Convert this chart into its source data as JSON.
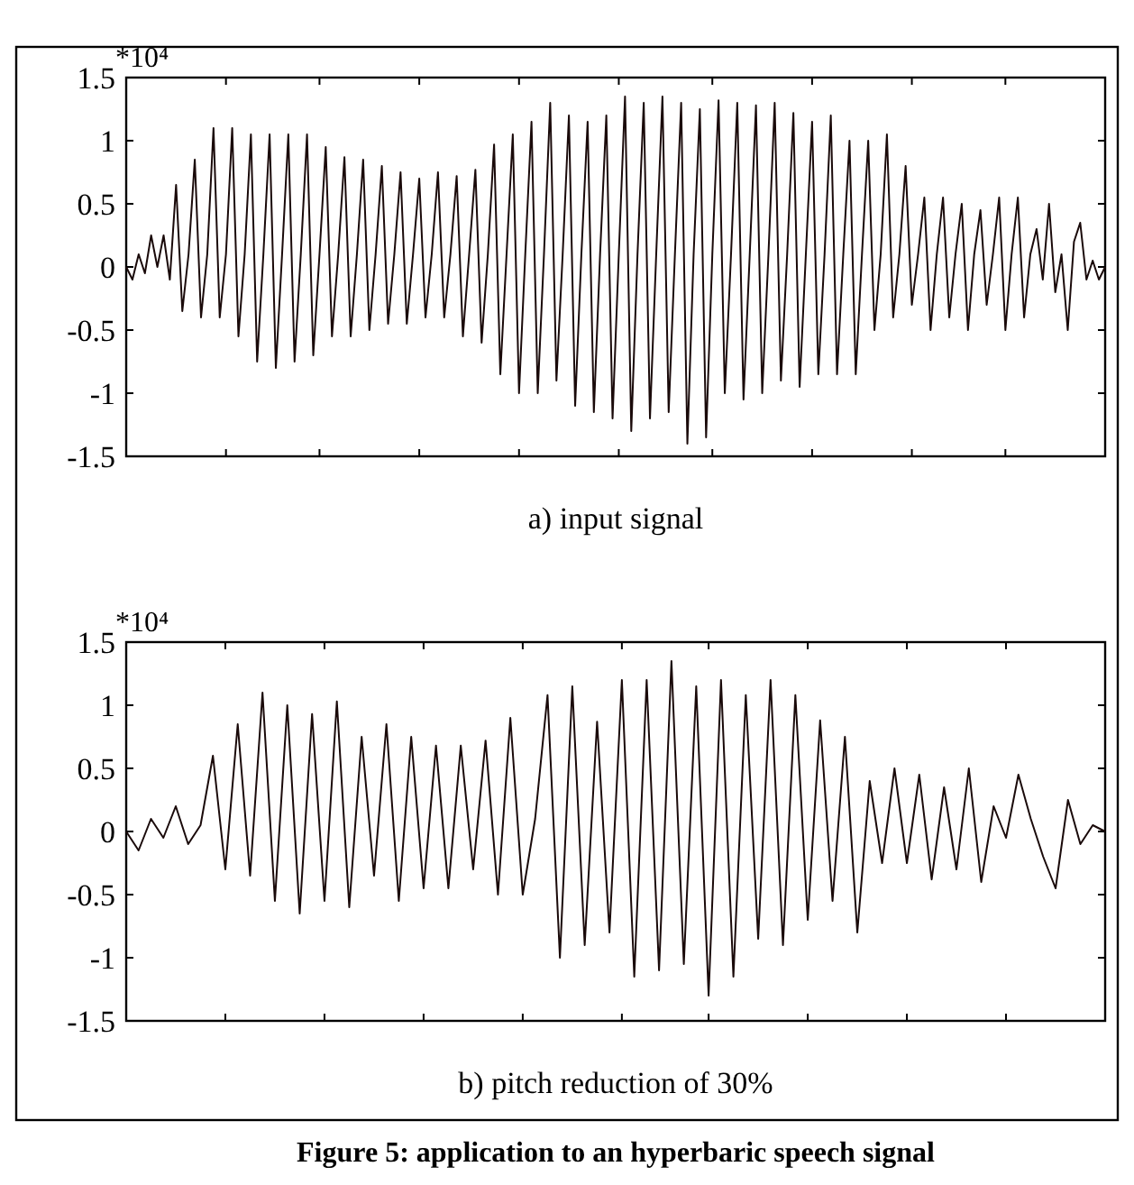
{
  "chart_data": [
    {
      "type": "line",
      "xlabel": "a) input signal",
      "ylabel": "*10⁴",
      "ylim": [
        -1.5,
        1.5
      ],
      "yticks": [
        1.5,
        1,
        0.5,
        0,
        -0.5,
        -1,
        -1.5
      ],
      "grid": false,
      "marker": "none",
      "line_style": "solid",
      "categories": [
        null,
        null,
        null,
        null,
        null,
        null,
        null,
        null,
        null,
        null,
        null,
        null,
        null,
        null,
        null,
        null,
        null,
        null,
        null,
        null,
        null,
        null,
        null,
        null,
        null,
        null,
        null,
        null,
        null,
        null,
        null,
        null,
        null,
        null,
        null,
        null,
        null,
        null,
        null,
        null,
        null,
        null,
        null,
        null,
        null,
        null,
        null,
        null,
        null,
        null,
        null,
        null,
        null,
        null,
        null,
        null,
        null,
        null,
        null,
        null,
        null,
        null,
        null,
        null,
        null,
        null,
        null,
        null,
        null,
        null,
        null,
        null,
        null,
        null,
        null,
        null,
        null,
        null,
        null,
        null,
        null,
        null,
        null,
        null,
        null,
        null,
        null,
        null,
        null,
        null,
        null,
        null,
        null,
        null,
        null,
        null,
        null,
        null,
        null,
        null,
        null,
        null,
        null,
        null,
        null,
        null,
        null,
        null,
        null,
        null,
        null,
        null,
        null,
        null,
        null,
        null,
        null,
        null,
        null,
        null,
        null,
        null,
        null,
        null,
        null,
        null,
        null,
        null,
        null,
        null,
        null,
        null,
        null,
        null,
        null,
        null,
        null,
        null,
        null,
        null,
        null,
        null,
        null,
        null,
        null,
        null,
        null,
        null,
        null,
        null,
        null,
        null,
        null,
        null,
        null,
        null,
        null,
        null
      ],
      "series": [
        {
          "color": "#1a0a0a",
          "values": [
            0,
            -0.1,
            0.1,
            -0.05,
            0.25,
            0,
            0.25,
            -0.1,
            0.65,
            -0.35,
            0.1,
            0.85,
            -0.4,
            0.1,
            1.1,
            -0.4,
            0.1,
            1.1,
            -0.55,
            0.1,
            1.05,
            -0.75,
            0.1,
            1.05,
            -0.8,
            0.1,
            1.05,
            -0.75,
            0.1,
            1.05,
            -0.7,
            0.1,
            0.95,
            -0.55,
            0.1,
            0.87,
            -0.55,
            0.1,
            0.85,
            -0.5,
            0.1,
            0.8,
            -0.45,
            0.1,
            0.75,
            -0.45,
            0.1,
            0.7,
            -0.4,
            0.1,
            0.75,
            -0.4,
            0.1,
            0.72,
            -0.55,
            0.1,
            0.77,
            -0.6,
            0.1,
            0.97,
            -0.85,
            0.1,
            1.05,
            -1,
            0.1,
            1.15,
            -1,
            0.1,
            1.3,
            -0.9,
            0.1,
            1.2,
            -1.1,
            0.1,
            1.15,
            -1.15,
            0.1,
            1.2,
            -1.2,
            0.1,
            1.35,
            -1.3,
            0.1,
            1.3,
            -1.2,
            0.1,
            1.35,
            -1.15,
            0.1,
            1.3,
            -1.4,
            0.1,
            1.25,
            -1.35,
            0.1,
            1.32,
            -1,
            0.1,
            1.3,
            -1.05,
            0.1,
            1.28,
            -1,
            0.1,
            1.3,
            -0.9,
            0.1,
            1.22,
            -0.95,
            0.1,
            1.15,
            -0.85,
            0.1,
            1.2,
            -0.85,
            0.1,
            1,
            -0.85,
            0.1,
            1,
            -0.5,
            0.1,
            1.05,
            -0.4,
            0.1,
            0.8,
            -0.3,
            0.1,
            0.55,
            -0.5,
            0.1,
            0.55,
            -0.4,
            0.1,
            0.5,
            -0.5,
            0.1,
            0.45,
            -0.3,
            0.1,
            0.55,
            -0.5,
            0.1,
            0.55,
            -0.4,
            0.1,
            0.3,
            -0.1,
            0.5,
            -0.2,
            0.1,
            -0.5,
            0.2,
            0.35,
            -0.1,
            0.05,
            -0.1,
            0
          ]
        }
      ]
    },
    {
      "type": "line",
      "xlabel": "b) pitch reduction of 30%",
      "ylabel": "*10⁴",
      "ylim": [
        -1.5,
        1.5
      ],
      "yticks": [
        1.5,
        1,
        0.5,
        0,
        -0.5,
        -1,
        -1.5
      ],
      "grid": false,
      "marker": "none",
      "line_style": "solid",
      "annotations": [
        "Figure 5: application to an hyperbaric speech signal"
      ],
      "categories": [
        null,
        null,
        null,
        null,
        null,
        null,
        null,
        null,
        null,
        null,
        null,
        null,
        null,
        null,
        null,
        null,
        null,
        null,
        null,
        null,
        null,
        null,
        null,
        null,
        null,
        null,
        null,
        null,
        null,
        null,
        null,
        null,
        null,
        null,
        null,
        null,
        null,
        null,
        null,
        null,
        null,
        null,
        null,
        null,
        null,
        null,
        null,
        null,
        null,
        null,
        null,
        null,
        null,
        null,
        null,
        null,
        null,
        null,
        null,
        null,
        null,
        null,
        null,
        null,
        null,
        null,
        null,
        null,
        null,
        null,
        null,
        null,
        null,
        null,
        null,
        null,
        null,
        null,
        null,
        null
      ],
      "series": [
        {
          "color": "#1a0a0a",
          "values": [
            0,
            -0.15,
            0.1,
            -0.05,
            0.2,
            -0.1,
            0.05,
            0.6,
            -0.3,
            0.85,
            -0.35,
            1.1,
            -0.55,
            1,
            -0.65,
            0.93,
            -0.55,
            1.03,
            -0.6,
            0.75,
            -0.35,
            0.85,
            -0.55,
            0.75,
            -0.45,
            0.68,
            -0.45,
            0.68,
            -0.3,
            0.72,
            -0.5,
            0.9,
            -0.5,
            0.1,
            1.08,
            -1,
            1.15,
            -0.9,
            0.87,
            -0.8,
            1.2,
            -1.15,
            1.2,
            -1.1,
            1.35,
            -1.05,
            1.15,
            -1.3,
            1.2,
            -1.15,
            1.08,
            -0.85,
            1.2,
            -0.9,
            1.08,
            -0.7,
            0.88,
            -0.55,
            0.75,
            -0.8,
            0.4,
            -0.25,
            0.5,
            -0.25,
            0.45,
            -0.38,
            0.35,
            -0.3,
            0.5,
            -0.4,
            0.2,
            -0.05,
            0.45,
            0.1,
            -0.2,
            -0.45,
            0.25,
            -0.1,
            0.05,
            0
          ]
        }
      ]
    }
  ]
}
